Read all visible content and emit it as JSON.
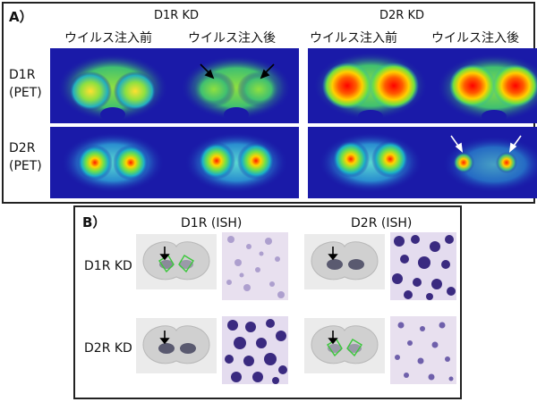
{
  "panel_a": {
    "letter": "A）",
    "groups": [
      "D1R KD",
      "D2R KD"
    ],
    "columns": [
      "ウイルス注入前",
      "ウイルス注入後",
      "ウイルス注入前",
      "ウイルス注入後"
    ],
    "rows": [
      {
        "line1": "D1R",
        "line2": "(PET)"
      },
      {
        "line1": "D2R",
        "line2": "(PET)"
      }
    ]
  },
  "panel_b": {
    "letter": "B）",
    "columns": [
      "D1R (ISH)",
      "D2R (ISH)"
    ],
    "rows": [
      "D1R KD",
      "D2R KD"
    ]
  },
  "colors": {
    "pet_background": "#1a1aa8",
    "ish_stain": "#3a2a80",
    "ish_background": "#e4dcef",
    "annotation_green": "#3cc83c"
  }
}
